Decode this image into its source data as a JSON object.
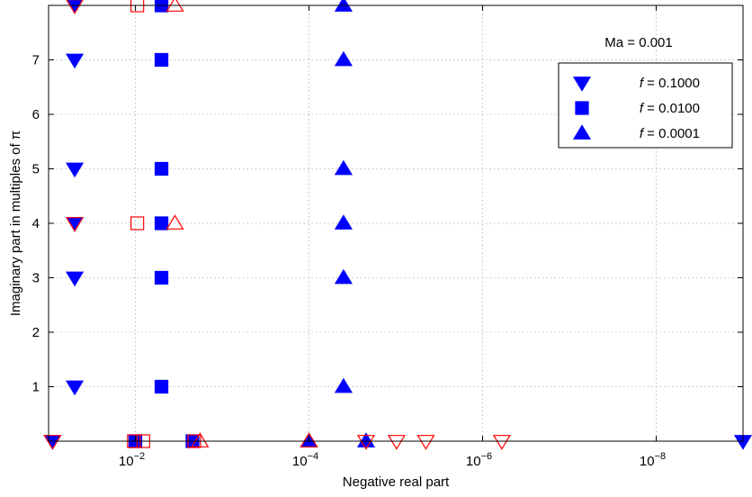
{
  "chart_data": {
    "type": "scatter",
    "title": "",
    "xlabel": "Negative real part",
    "ylabel": "Imaginary part in multiples of π",
    "x_scale": "log",
    "x_reversed": true,
    "xlim": [
      1e-09,
      0.1
    ],
    "ylim": [
      0,
      8
    ],
    "grid": true,
    "x_ticks": [
      {
        "value": 0.01,
        "base": "10",
        "exp": "−2"
      },
      {
        "value": 0.0001,
        "base": "10",
        "exp": "−4"
      },
      {
        "value": 1e-06,
        "base": "10",
        "exp": "−6"
      },
      {
        "value": 1e-08,
        "base": "10",
        "exp": "−8"
      }
    ],
    "y_ticks": [
      "1",
      "2",
      "3",
      "4",
      "5",
      "6",
      "7"
    ],
    "annotation": "Ma = 0.001",
    "legend": {
      "position": "top-right",
      "entries": [
        {
          "prefix": "f",
          "text": " = 0.1000",
          "marker": "triangle-down",
          "color": "#0000ff"
        },
        {
          "prefix": "f",
          "text": " = 0.0100",
          "marker": "square",
          "color": "#0000ff"
        },
        {
          "prefix": "f",
          "text": " = 0.0001",
          "marker": "triangle-up",
          "color": "#0000ff"
        }
      ]
    },
    "series": [
      {
        "name": "f = 0.1000",
        "marker": "triangle-down",
        "style": "filled",
        "color": "#0000ff",
        "points": [
          {
            "x": 0.09,
            "y": 0
          },
          {
            "x": 0.05,
            "y": 1
          },
          {
            "x": 0.05,
            "y": 3
          },
          {
            "x": 0.05,
            "y": 4
          },
          {
            "x": 0.05,
            "y": 5
          },
          {
            "x": 0.05,
            "y": 7
          },
          {
            "x": 0.05,
            "y": 8
          },
          {
            "x": 1e-09,
            "y": 0
          }
        ]
      },
      {
        "name": "f = 0.0100",
        "marker": "square",
        "style": "filled",
        "color": "#0000ff",
        "points": [
          {
            "x": 0.01,
            "y": 0
          },
          {
            "x": 0.0022,
            "y": 0
          },
          {
            "x": 0.005,
            "y": 1
          },
          {
            "x": 0.005,
            "y": 3
          },
          {
            "x": 0.005,
            "y": 4
          },
          {
            "x": 0.005,
            "y": 5
          },
          {
            "x": 0.005,
            "y": 7
          },
          {
            "x": 0.005,
            "y": 8
          }
        ]
      },
      {
        "name": "f = 0.0001",
        "marker": "triangle-up",
        "style": "filled",
        "color": "#0000ff",
        "points": [
          {
            "x": 0.0001,
            "y": 0
          },
          {
            "x": 2.2e-05,
            "y": 0
          },
          {
            "x": 4e-05,
            "y": 1
          },
          {
            "x": 4e-05,
            "y": 3
          },
          {
            "x": 4e-05,
            "y": 4
          },
          {
            "x": 4e-05,
            "y": 5
          },
          {
            "x": 4e-05,
            "y": 7
          },
          {
            "x": 4e-05,
            "y": 8
          }
        ]
      },
      {
        "marker": "triangle-down",
        "style": "open",
        "color": "#ff0000",
        "points": [
          {
            "x": 0.09,
            "y": 0
          },
          {
            "x": 0.05,
            "y": 4
          },
          {
            "x": 0.05,
            "y": 8
          },
          {
            "x": 2.2e-05,
            "y": 0
          },
          {
            "x": 9.8e-06,
            "y": 0
          },
          {
            "x": 4.5e-06,
            "y": 0
          },
          {
            "x": 6e-07,
            "y": 0
          }
        ]
      },
      {
        "marker": "square",
        "style": "open",
        "color": "#ff0000",
        "points": [
          {
            "x": 0.0104,
            "y": 0
          },
          {
            "x": 0.0081,
            "y": 0
          },
          {
            "x": 0.0021,
            "y": 0
          },
          {
            "x": 0.0095,
            "y": 4
          },
          {
            "x": 0.0095,
            "y": 8
          }
        ]
      },
      {
        "marker": "triangle-up",
        "style": "open",
        "color": "#ff0000",
        "points": [
          {
            "x": 0.0018,
            "y": 0
          },
          {
            "x": 0.0001,
            "y": 0
          },
          {
            "x": 0.0035,
            "y": 4
          },
          {
            "x": 0.0035,
            "y": 8
          }
        ]
      }
    ]
  }
}
